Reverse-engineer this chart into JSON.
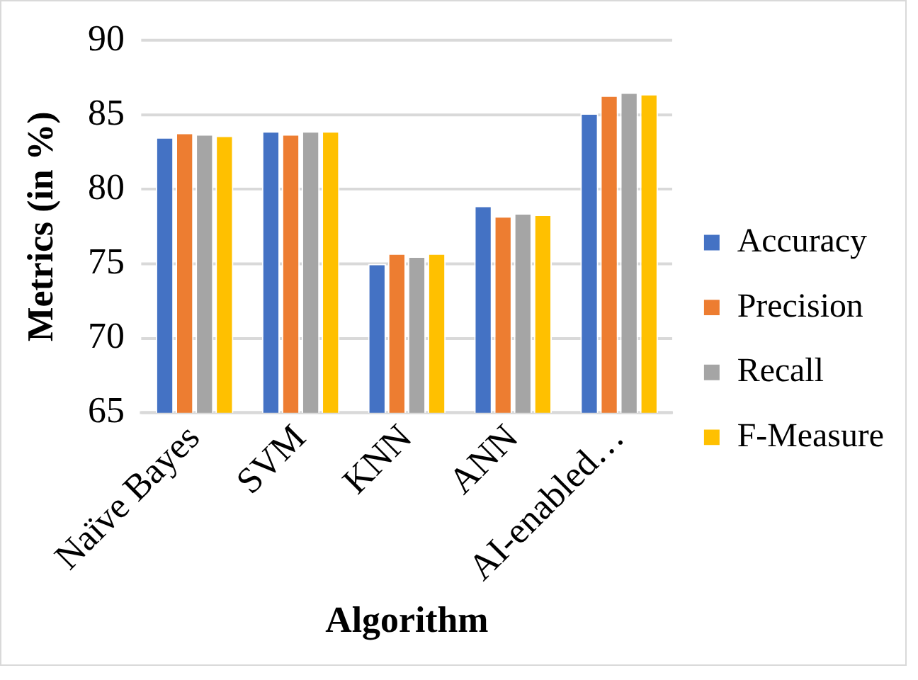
{
  "chart_data": {
    "type": "bar",
    "xlabel": "Algorithm",
    "ylabel": "Metrics (in %)",
    "categories": [
      "Naïve Bayes",
      "SVM",
      "KNN",
      "ANN",
      "AI-enabled…"
    ],
    "series": [
      {
        "name": "Accuracy",
        "color": "#4472c4",
        "values": [
          83.5,
          83.9,
          75.0,
          78.9,
          85.1
        ]
      },
      {
        "name": "Precision",
        "color": "#ed7d31",
        "values": [
          83.8,
          83.7,
          75.7,
          78.2,
          86.3
        ]
      },
      {
        "name": "Recall",
        "color": "#a5a5a5",
        "values": [
          83.7,
          83.9,
          75.5,
          78.4,
          86.5
        ]
      },
      {
        "name": "F-Measure",
        "color": "#ffc000",
        "values": [
          83.6,
          83.9,
          75.7,
          78.3,
          86.4
        ]
      }
    ],
    "ylim": [
      65,
      90
    ],
    "yticks": [
      65,
      70,
      75,
      80,
      85,
      90
    ],
    "grid": "y",
    "legend": "right"
  }
}
